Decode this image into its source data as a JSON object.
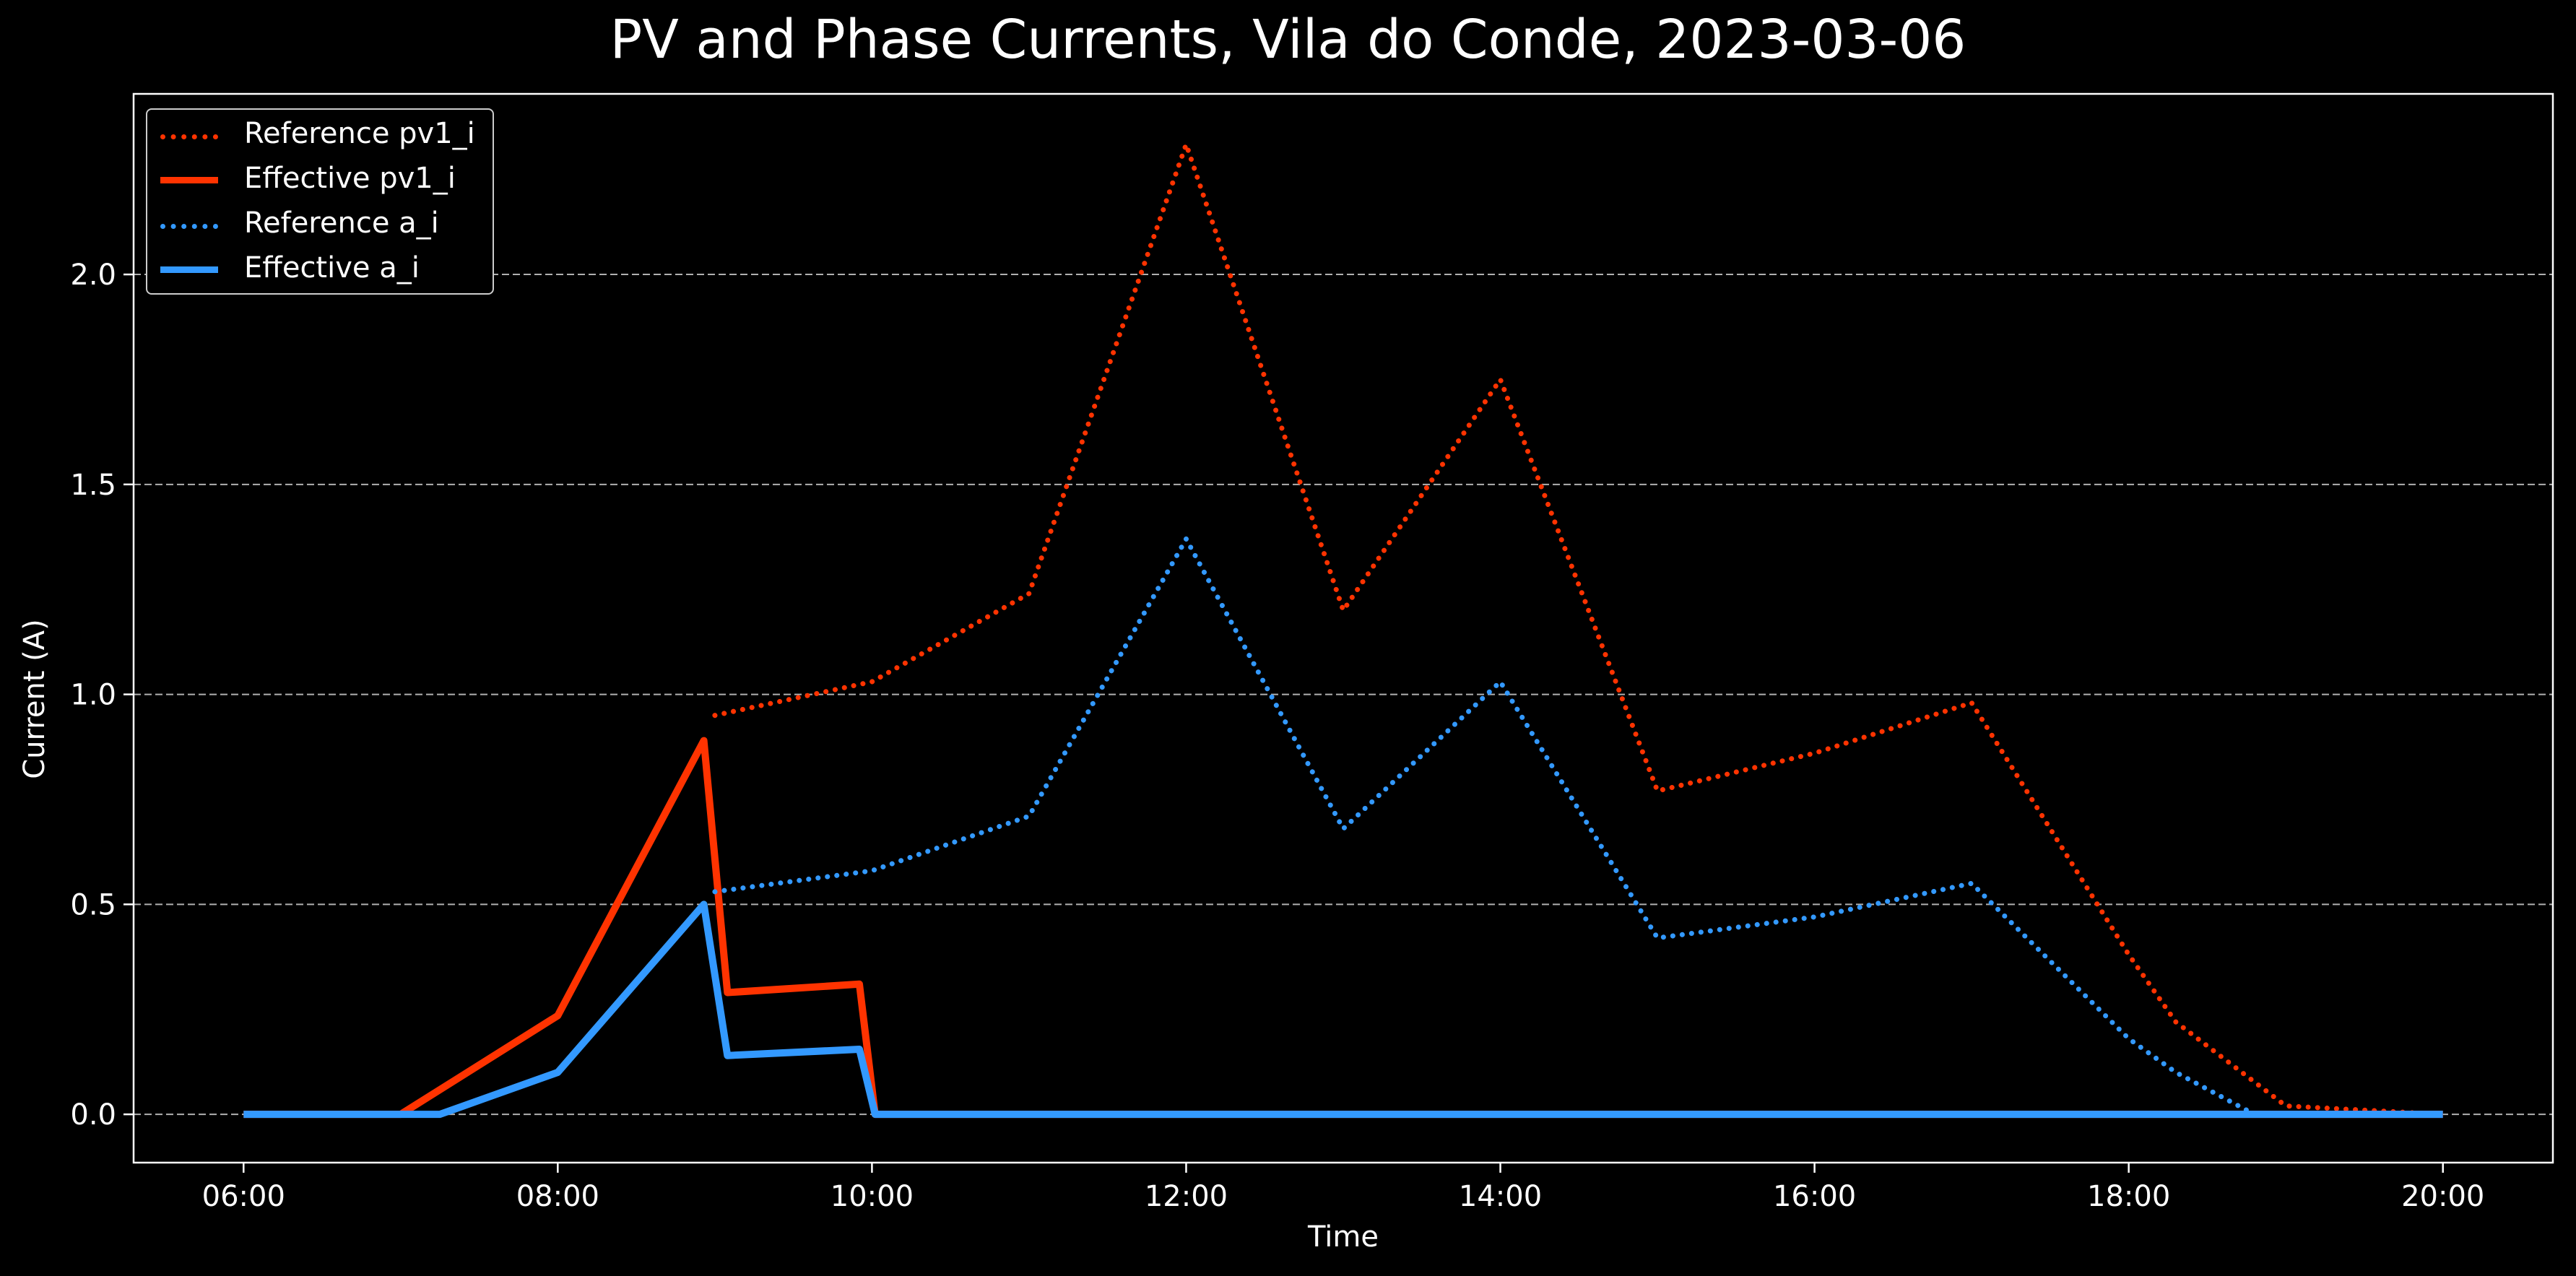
{
  "chart_data": {
    "type": "line",
    "title": "PV and Phase Currents, Vila do Conde, 2023-03-06",
    "xlabel": "Time",
    "ylabel": "Current (A)",
    "x_range_hours": [
      5.3,
      20.7
    ],
    "ylim": [
      -0.115,
      2.43
    ],
    "x_ticks": [
      {
        "value": 6,
        "label": "06:00"
      },
      {
        "value": 8,
        "label": "08:00"
      },
      {
        "value": 10,
        "label": "10:00"
      },
      {
        "value": 12,
        "label": "12:00"
      },
      {
        "value": 14,
        "label": "14:00"
      },
      {
        "value": 16,
        "label": "16:00"
      },
      {
        "value": 18,
        "label": "18:00"
      },
      {
        "value": 20,
        "label": "20:00"
      }
    ],
    "y_ticks": [
      {
        "value": 0.0,
        "label": "0.0"
      },
      {
        "value": 0.5,
        "label": "0.5"
      },
      {
        "value": 1.0,
        "label": "1.0"
      },
      {
        "value": 1.5,
        "label": "1.5"
      },
      {
        "value": 2.0,
        "label": "2.0"
      }
    ],
    "grid": "horizontal dashed",
    "legend_position": "top-left",
    "series": [
      {
        "name": "Reference pv1_i",
        "style": "dotted",
        "color": "#ff3300",
        "points": [
          [
            9.0,
            0.95
          ],
          [
            10.0,
            1.03
          ],
          [
            11.0,
            1.24
          ],
          [
            12.0,
            2.31
          ],
          [
            13.0,
            1.2
          ],
          [
            14.0,
            1.75
          ],
          [
            15.0,
            0.77
          ],
          [
            16.0,
            0.86
          ],
          [
            17.0,
            0.98
          ],
          [
            18.0,
            0.38
          ],
          [
            18.3,
            0.22
          ],
          [
            19.0,
            0.02
          ],
          [
            20.0,
            0.0
          ]
        ]
      },
      {
        "name": "Effective pv1_i",
        "style": "solid",
        "color": "#ff3300",
        "points": [
          [
            6.0,
            0.0
          ],
          [
            7.0,
            0.0
          ],
          [
            8.0,
            0.235
          ],
          [
            8.93,
            0.89
          ],
          [
            9.08,
            0.29
          ],
          [
            9.92,
            0.31
          ],
          [
            10.02,
            0.0
          ],
          [
            20.0,
            0.0
          ]
        ]
      },
      {
        "name": "Reference a_i",
        "style": "dotted",
        "color": "#3399ff",
        "points": [
          [
            9.0,
            0.53
          ],
          [
            10.0,
            0.58
          ],
          [
            11.0,
            0.71
          ],
          [
            12.0,
            1.37
          ],
          [
            13.0,
            0.68
          ],
          [
            14.0,
            1.03
          ],
          [
            15.0,
            0.42
          ],
          [
            16.0,
            0.47
          ],
          [
            17.0,
            0.55
          ],
          [
            18.0,
            0.18
          ],
          [
            18.3,
            0.1
          ],
          [
            18.8,
            0.0
          ],
          [
            20.0,
            0.0
          ]
        ]
      },
      {
        "name": "Effective a_i",
        "style": "solid",
        "color": "#3399ff",
        "points": [
          [
            6.0,
            0.0
          ],
          [
            7.25,
            0.0
          ],
          [
            8.0,
            0.1
          ],
          [
            8.93,
            0.5
          ],
          [
            9.08,
            0.14
          ],
          [
            9.92,
            0.155
          ],
          [
            10.02,
            0.0
          ],
          [
            20.0,
            0.0
          ]
        ]
      }
    ]
  }
}
